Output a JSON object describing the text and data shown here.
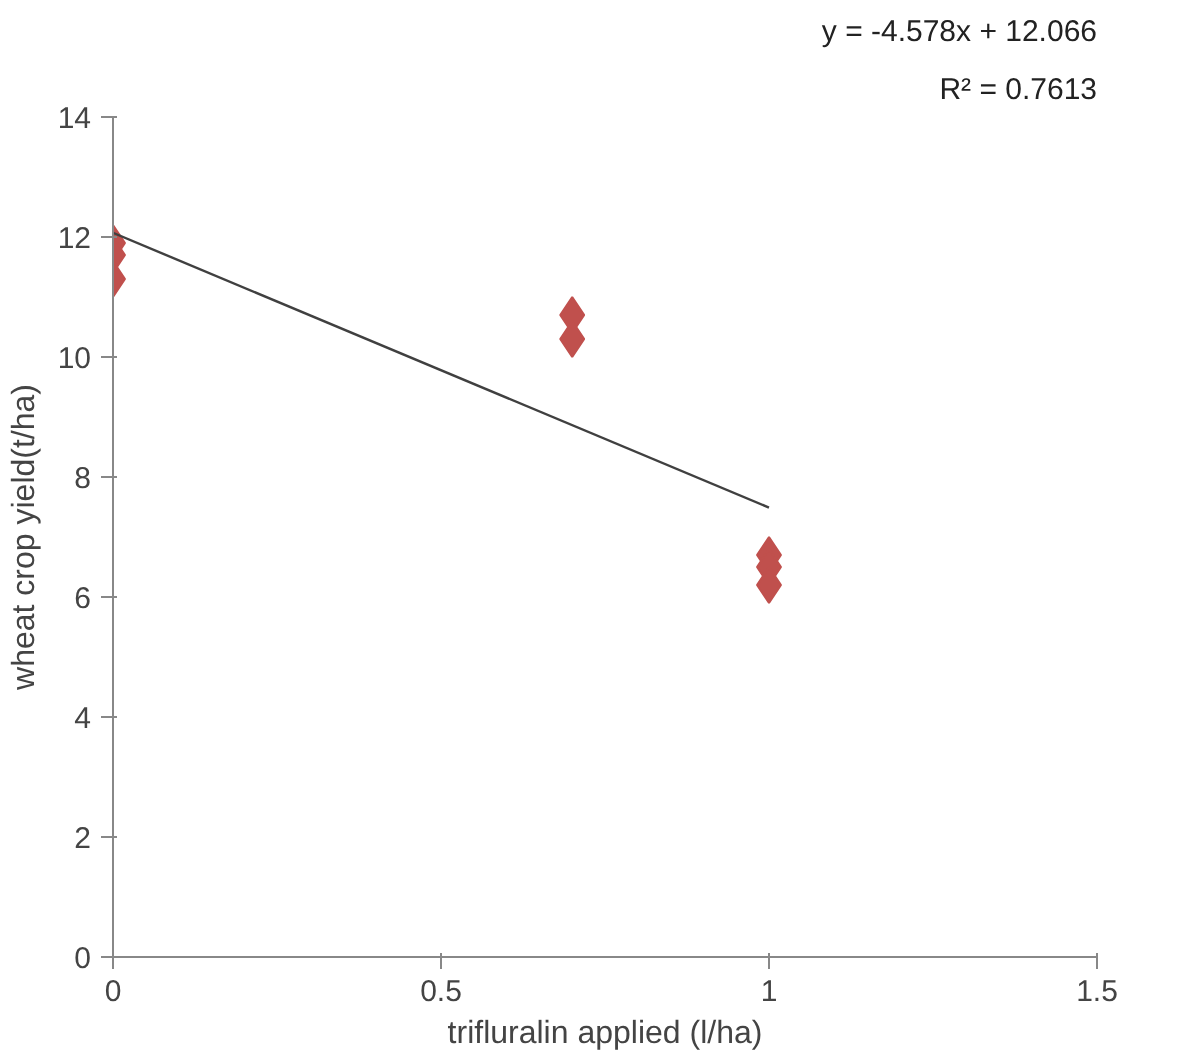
{
  "chart_data": {
    "type": "scatter",
    "xlabel": "trifluralin applied (l/ha)",
    "ylabel": "wheat crop yield(t/ha)",
    "series": [
      {
        "color": "#c0504d",
        "marker": "diamond",
        "x": [
          0,
          0,
          0,
          0.7,
          0.7,
          1,
          1,
          1
        ],
        "values": [
          11.9,
          11.7,
          11.3,
          10.7,
          10.3,
          6.7,
          6.5,
          6.2
        ]
      },
      {
        "type": "line",
        "color": "#404040",
        "x": [
          0,
          1
        ],
        "values": [
          12.07,
          7.49
        ]
      }
    ],
    "annotations": [
      "y = -4.578x + 12.066",
      "R² = 0.7613"
    ],
    "xlim": [
      0,
      1.5
    ],
    "ylim": [
      0,
      14
    ],
    "xticks": [
      0,
      0.5,
      1,
      1.5
    ],
    "yticks": [
      0,
      2,
      4,
      6,
      8,
      10,
      12,
      14
    ],
    "grid": false
  }
}
